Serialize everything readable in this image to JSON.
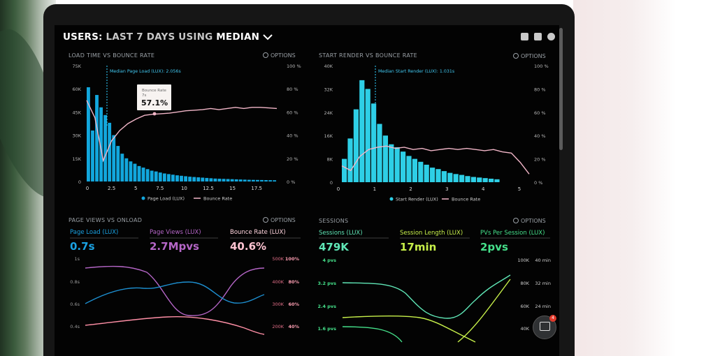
{
  "header": {
    "title_prefix": "USERS: ",
    "title_mid": "LAST 7 DAYS ",
    "title_using": "USING ",
    "title_stat": "MEDIAN"
  },
  "icons": [
    "monitor-icon",
    "share-icon",
    "help-icon",
    "chevron-down-icon",
    "gear-icon",
    "chat-icon"
  ],
  "panels": {
    "p1": {
      "title": "LOAD TIME VS BOUNCE RATE",
      "options": "OPTIONS",
      "marker": "Median Page Load (LUX): 2.056s",
      "tooltip_label": "Bounce Rate",
      "tooltip_sub": "7s",
      "tooltip_value": "57.1%",
      "legend_a": "Page Load (LUX)",
      "legend_b": "Bounce Rate"
    },
    "p2": {
      "title": "START RENDER VS BOUNCE RATE",
      "options": "OPTIONS",
      "marker": "Median Start Render (LUX): 1.031s",
      "legend_a": "Start Render (LUX)",
      "legend_b": "Bounce Rate"
    },
    "p3": {
      "title": "PAGE VIEWS VS ONLOAD",
      "options": "OPTIONS"
    },
    "p4": {
      "title": "SESSIONS",
      "options": "OPTIONS"
    }
  },
  "metrics": {
    "page_load": {
      "label": "Page Load (LUX)",
      "value": "0.7s"
    },
    "page_views": {
      "label": "Page Views (LUX)",
      "value": "2.7Mpvs"
    },
    "bounce_rate": {
      "label": "Bounce Rate (LUX)",
      "value": "40.6%"
    },
    "sessions": {
      "label": "Sessions (LUX)",
      "value": "479K"
    },
    "session_length": {
      "label": "Session Length (LUX)",
      "value": "17min"
    },
    "pvs_per_session": {
      "label": "PVs Per Session (LUX)",
      "value": "2pvs"
    }
  },
  "colors": {
    "blue": "#12a7dd",
    "cyan": "#2ecfe6",
    "pink": "#f2b6c8",
    "bounce": "#ff8fa6",
    "violet": "#b566c7",
    "green": "#45e08a",
    "lime": "#c7f04a",
    "teal": "#5fe6b6"
  },
  "chat_badge": "4",
  "chart_data": [
    {
      "type": "bar",
      "title": "LOAD TIME VS BOUNCE RATE",
      "x_ticks": [
        "0",
        "2.5",
        "5",
        "7.5",
        "10",
        "12.5",
        "15",
        "17.5"
      ],
      "y_ticks": [
        "0",
        "15K",
        "30K",
        "45K",
        "60K",
        "75K"
      ],
      "y2_ticks": [
        "0 %",
        "20 %",
        "40 %",
        "60 %",
        "80 %",
        "100 %"
      ],
      "ylim": [
        0,
        75000
      ],
      "y2lim": [
        0,
        100
      ],
      "bars": [
        61000,
        33000,
        56000,
        48000,
        43000,
        38000,
        30000,
        23000,
        18000,
        15000,
        13000,
        11500,
        10000,
        9000,
        8000,
        7000,
        6500,
        5800,
        5200,
        4800,
        4400,
        4000,
        3700,
        3400,
        3100,
        2900,
        2700,
        2500,
        2300,
        2100,
        1900,
        1800,
        1700,
        1600,
        1500,
        1400,
        1300,
        1200,
        1100,
        1050,
        1000,
        950,
        900,
        850,
        800
      ],
      "bounce": [
        70,
        55,
        18,
        35,
        44,
        50,
        54,
        57.1,
        58,
        58.5,
        59,
        60,
        61,
        61.5,
        62,
        63,
        62,
        63,
        64,
        63,
        64,
        64,
        63.5,
        63
      ],
      "marker_label": "Median Page Load (LUX): 2.056s"
    },
    {
      "type": "bar",
      "title": "START RENDER VS BOUNCE RATE",
      "x_ticks": [
        "0",
        "1",
        "2",
        "3",
        "4",
        "5"
      ],
      "y_ticks": [
        "0",
        "8K",
        "16K",
        "24K",
        "32K",
        "40K"
      ],
      "y2_ticks": [
        "0 %",
        "20 %",
        "40 %",
        "60 %",
        "80 %",
        "100 %"
      ],
      "ylim": [
        0,
        40000
      ],
      "y2lim": [
        0,
        100
      ],
      "bars": [
        8000,
        15000,
        25000,
        35000,
        32000,
        27000,
        20000,
        16000,
        13000,
        12000,
        10500,
        9000,
        8000,
        7000,
        6000,
        5000,
        4500,
        3800,
        3200,
        2800,
        2500,
        2100,
        1800,
        1600,
        1400,
        1200,
        1000
      ],
      "bounce": [
        14,
        10,
        22,
        28,
        30,
        31,
        29,
        30,
        28,
        29,
        27,
        28,
        29,
        28,
        29,
        28,
        27,
        28,
        26,
        25,
        17,
        7
      ],
      "marker_label": "Median Start Render (LUX): 1.031s"
    },
    {
      "type": "line",
      "title": "PAGE VIEWS VS ONLOAD",
      "y_ticks": [
        "0.4s",
        "0.6s",
        "0.8s",
        "1s"
      ],
      "y2_ticks": [
        "200K",
        "300K",
        "400K",
        "500K"
      ],
      "y3_ticks": [
        "40%",
        "60%",
        "80%",
        "100%"
      ]
    },
    {
      "type": "line",
      "title": "SESSIONS",
      "y_ticks": [
        "1.6 pvs",
        "2.4 pvs",
        "3.2 pvs",
        "4 pvs"
      ],
      "y2_ticks": [
        "40K",
        "60K",
        "80K",
        "100K"
      ],
      "y3_ticks": [
        "24 min",
        "32 min",
        "40 min"
      ]
    }
  ]
}
